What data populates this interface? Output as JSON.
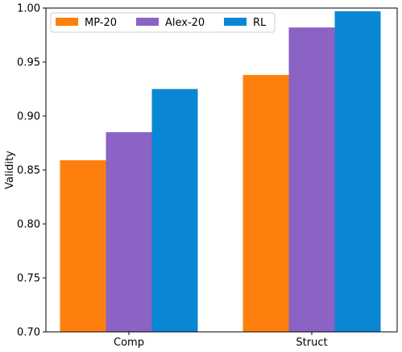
{
  "chart_data": {
    "type": "bar",
    "title": "",
    "xlabel": "",
    "ylabel": "Validity",
    "categories": [
      "Comp",
      "Struct"
    ],
    "series": [
      {
        "name": "MP-20",
        "color": "#ff7f0e",
        "values": [
          0.859,
          0.938
        ]
      },
      {
        "name": "Alex-20",
        "color": "#8a63c4",
        "values": [
          0.885,
          0.982
        ]
      },
      {
        "name": "RL",
        "color": "#0a87d4",
        "values": [
          0.925,
          0.997
        ]
      }
    ],
    "ylim": [
      0.7,
      1.0
    ],
    "yticks": [
      "0.70",
      "0.75",
      "0.80",
      "0.85",
      "0.90",
      "0.95",
      "1.00"
    ],
    "grid": false,
    "legend_position": "top-left"
  }
}
